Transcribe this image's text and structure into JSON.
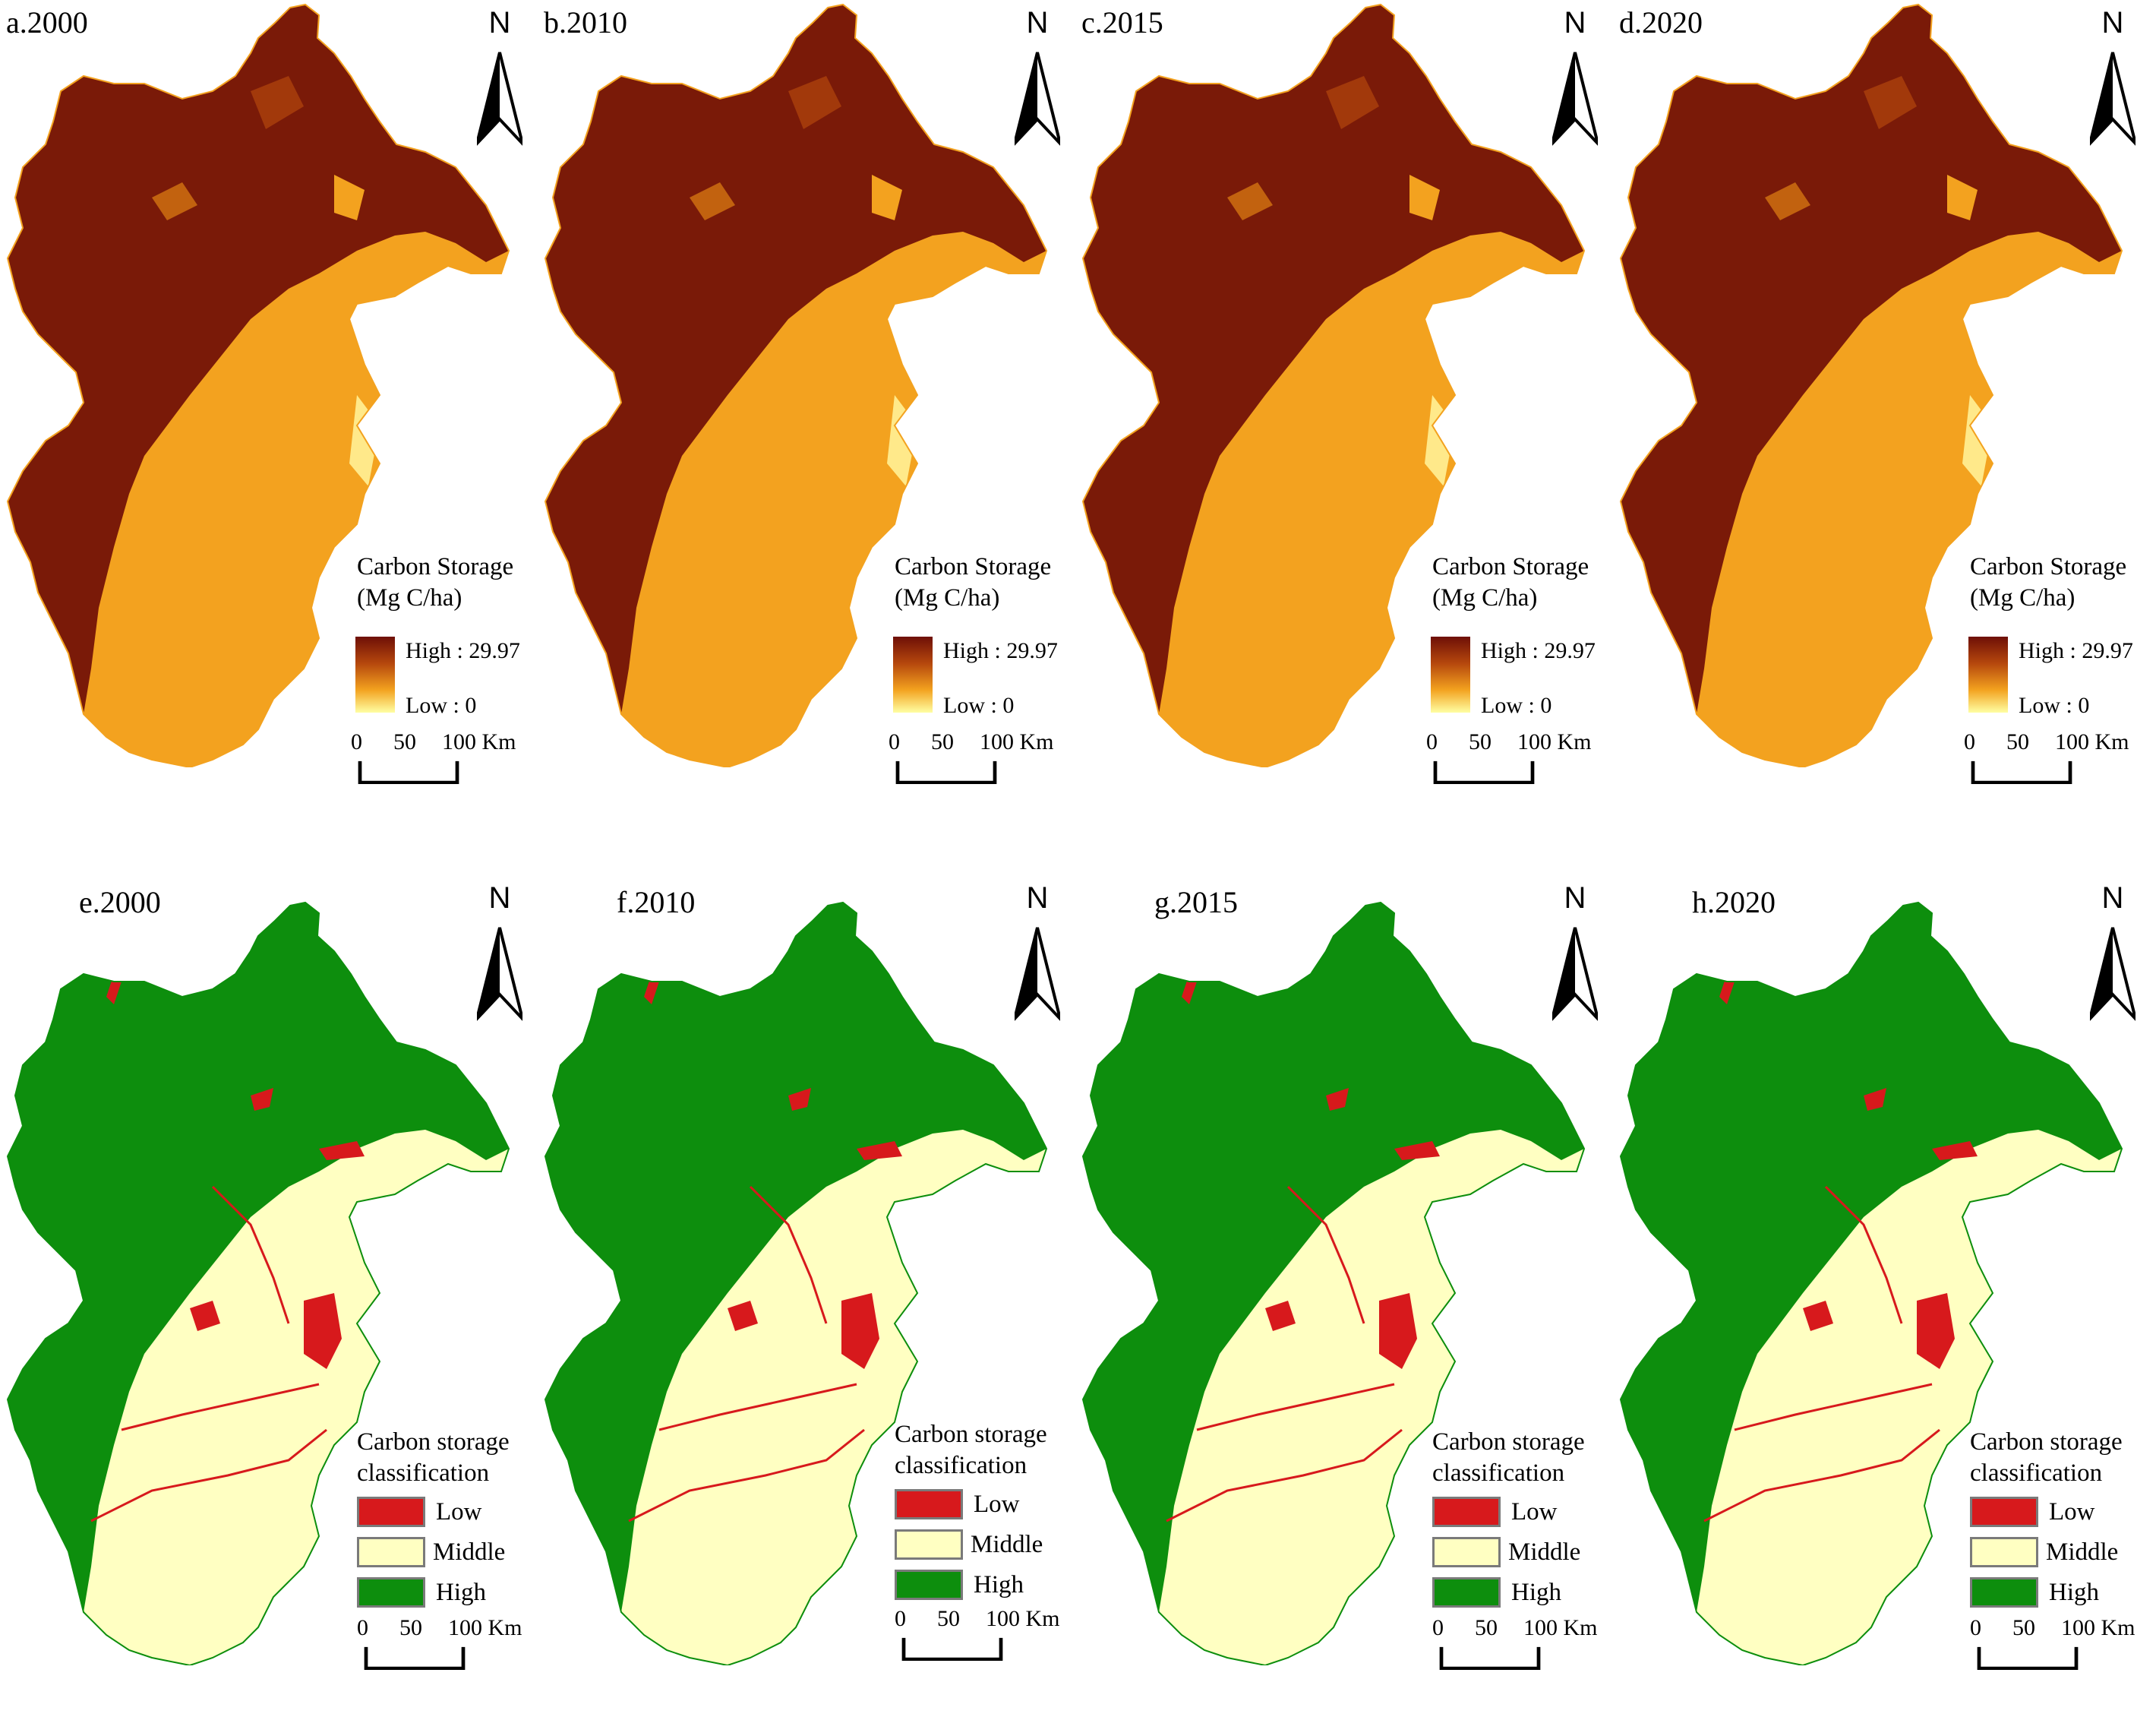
{
  "top_row": [
    {
      "title": "a.2000"
    },
    {
      "title": "b.2010"
    },
    {
      "title": "c.2015"
    },
    {
      "title": "d.2020"
    }
  ],
  "bottom_row": [
    {
      "title": "e.2000"
    },
    {
      "title": "f.2010"
    },
    {
      "title": "g.2015"
    },
    {
      "title": "h.2020"
    }
  ],
  "north_label": "N",
  "continuous_legend": {
    "title_line1": "Carbon Storage",
    "title_line2": "(Mg C/ha)",
    "high_label": "High : 29.97",
    "low_label": "Low : 0",
    "high_value": 29.97,
    "low_value": 0,
    "ramp_colors": [
      "#6e0f07",
      "#b5470d",
      "#f3a21f",
      "#ffffa3"
    ]
  },
  "class_legend": {
    "title_line1": "Carbon storage",
    "title_line2": "classification",
    "classes": [
      {
        "label": "Low",
        "color": "#d7191c"
      },
      {
        "label": "Middle",
        "color": "#ffffc2"
      },
      {
        "label": "High",
        "color": "#0d8e0d"
      }
    ]
  },
  "scale_bar": {
    "tick_0": "0",
    "tick_50": "50",
    "tick_100": "100 Km"
  },
  "colors": {
    "carbon_high": "#6e0f07",
    "carbon_mid": "#f3a21f",
    "carbon_low": "#ffe98a",
    "class_low": "#d7191c",
    "class_middle": "#ffffc2",
    "class_high": "#0d8e0d"
  }
}
